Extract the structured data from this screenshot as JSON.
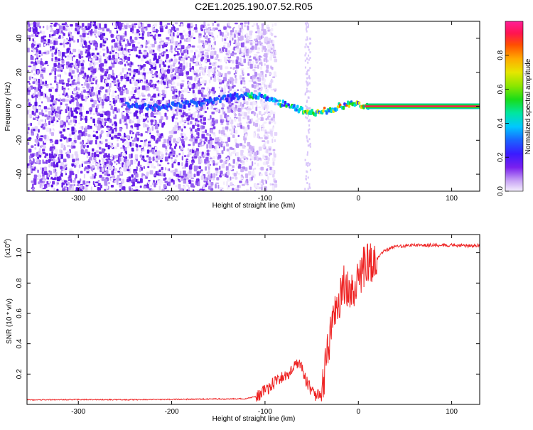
{
  "page": {
    "title": "C2E1.2025.190.07.52.R05"
  },
  "chart_data": [
    {
      "type": "heatmap",
      "title": "C2E1.2025.190.07.52.R05",
      "xlabel": "Height of straight line (km)",
      "ylabel": "Frequency (Hz)",
      "xlim": [
        -355,
        130
      ],
      "ylim": [
        -50,
        50
      ],
      "x_ticks": [
        "-300",
        "-200",
        "-100",
        "0",
        "100"
      ],
      "x_tick_values": [
        -300,
        -200,
        -100,
        0,
        100
      ],
      "y_ticks": [
        "-40",
        "-20",
        "0",
        "20",
        "40"
      ],
      "y_tick_values": [
        -40,
        -20,
        0,
        20,
        40
      ],
      "ridge_frequency": {
        "x": [
          -250,
          -220,
          -190,
          -170,
          -150,
          -130,
          -110,
          -100,
          -90,
          -80,
          -70,
          -60,
          -50,
          -40,
          -30,
          -20,
          -10,
          0,
          10,
          130
        ],
        "y": [
          0,
          -1,
          1,
          2,
          4,
          6,
          6,
          5,
          3,
          1,
          -1,
          -3,
          -4,
          -3,
          -2,
          0,
          1,
          1,
          0,
          0
        ]
      },
      "noise_region_x": [
        -355,
        -90
      ],
      "colorbar": {
        "label": "Normalized spectral amplitude",
        "range": [
          0,
          1
        ],
        "ticks": [
          "0.0",
          "0.2",
          "0.4",
          "0.6",
          "0.8"
        ],
        "tick_values": [
          0,
          0.2,
          0.4,
          0.6,
          0.8
        ]
      },
      "grid": false
    },
    {
      "type": "line",
      "xlabel": "Height of straight line (km)",
      "ylabel": "SNR (10 * v/v)",
      "y_multiplier": "(x10",
      "y_multiplier_exp": "4",
      "y_multiplier_close": ")",
      "xlim": [
        -355,
        130
      ],
      "ylim": [
        0,
        11200
      ],
      "x_ticks": [
        "-300",
        "-200",
        "-100",
        "0",
        "100"
      ],
      "x_tick_values": [
        -300,
        -200,
        -100,
        0,
        100
      ],
      "y_ticks": [
        "0.2",
        "0.4",
        "0.6",
        "0.8",
        "1.0"
      ],
      "y_tick_values": [
        2000,
        4000,
        6000,
        8000,
        10000
      ],
      "series": [
        {
          "color": "#ee2222",
          "x": [
            -355,
            -300,
            -250,
            -200,
            -150,
            -120,
            -105,
            -95,
            -85,
            -75,
            -70,
            -65,
            -60,
            -55,
            -50,
            -45,
            -40,
            -35,
            -30,
            -25,
            -20,
            -15,
            -10,
            -5,
            0,
            5,
            10,
            15,
            20,
            25,
            30,
            40,
            50,
            60,
            80,
            100,
            120,
            130
          ],
          "y": [
            300,
            320,
            310,
            330,
            360,
            380,
            600,
            1200,
            1600,
            2000,
            2500,
            2700,
            2400,
            1400,
            900,
            500,
            900,
            2500,
            4500,
            6000,
            7000,
            8000,
            7200,
            7800,
            8400,
            9000,
            9500,
            9200,
            9600,
            10000,
            10200,
            10400,
            10450,
            10500,
            10500,
            10500,
            10450,
            10500
          ]
        }
      ],
      "grid": false
    }
  ]
}
